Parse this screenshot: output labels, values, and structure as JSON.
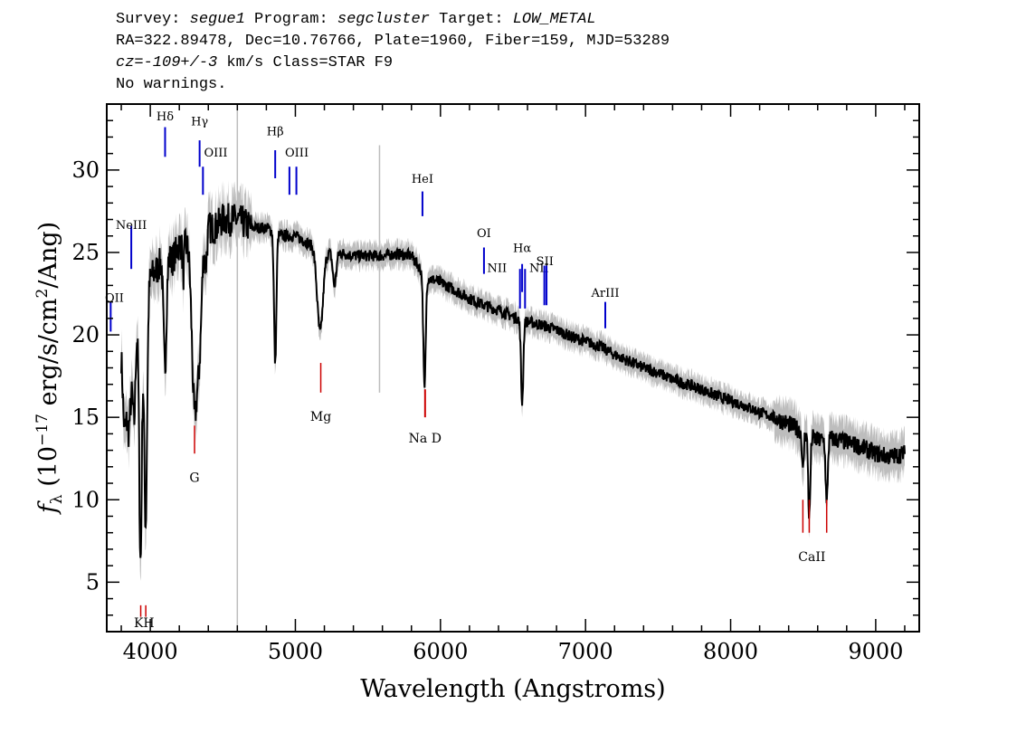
{
  "header": {
    "survey_label": "Survey: ",
    "survey": "segue1",
    "program_label": " Program: ",
    "program": "segcluster",
    "target_label": " Target: ",
    "target": "LOW_METAL",
    "line2": "RA=322.89478, Dec=10.76766, Plate=1960, Fiber=159, MJD=53289",
    "cz_label": "cz=",
    "cz_value": "-109+/-3",
    "cz_rest": " km/s Class=STAR F9",
    "line4": "No warnings."
  },
  "chart_data": {
    "type": "line",
    "title": "",
    "xlabel": "Wavelength (Angstroms)",
    "ylabel": "f_λ (10^-17 erg/s/cm²/Ang)",
    "ylabel_parts": {
      "f": "f",
      "lambda": "λ",
      "pre": " (10",
      "exp": "−17",
      "mid": " erg/s/cm",
      "exp2": "2",
      "post": "/Ang)"
    },
    "xlim": [
      3700,
      9300
    ],
    "ylim": [
      2,
      34
    ],
    "xticks": [
      4000,
      5000,
      6000,
      7000,
      8000,
      9000
    ],
    "yticks": [
      5,
      10,
      15,
      20,
      25,
      30
    ],
    "colors": {
      "spectrum": "#000000",
      "error_band": "#bdbdbd",
      "emission": "#0000cc",
      "absorption": "#cc0000"
    },
    "series": [
      {
        "continuum": [
          [
            3800,
            19
          ],
          [
            3850,
            14
          ],
          [
            3900,
            20
          ],
          [
            3950,
            22
          ],
          [
            4000,
            23.5
          ],
          [
            4050,
            24
          ],
          [
            4100,
            25
          ],
          [
            4150,
            24.5
          ],
          [
            4200,
            25.5
          ],
          [
            4250,
            25.5
          ],
          [
            4300,
            25.5
          ],
          [
            4350,
            26
          ],
          [
            4400,
            26.5
          ],
          [
            4450,
            26.5
          ],
          [
            4500,
            27
          ],
          [
            4550,
            27
          ],
          [
            4600,
            27
          ],
          [
            4700,
            26.5
          ],
          [
            4800,
            26.5
          ],
          [
            4900,
            26
          ],
          [
            5000,
            26
          ],
          [
            5100,
            25.5
          ],
          [
            5200,
            25
          ],
          [
            5300,
            25
          ],
          [
            5400,
            24.8
          ],
          [
            5500,
            24.8
          ],
          [
            5600,
            24.8
          ],
          [
            5700,
            24.9
          ],
          [
            5800,
            24.8
          ],
          [
            5900,
            23.5
          ],
          [
            6000,
            23.2
          ],
          [
            6100,
            22.7
          ],
          [
            6200,
            22.2
          ],
          [
            6300,
            21.8
          ],
          [
            6400,
            21.5
          ],
          [
            6500,
            21.1
          ],
          [
            6600,
            20.8
          ],
          [
            6700,
            20.6
          ],
          [
            6800,
            20.3
          ],
          [
            6900,
            19.9
          ],
          [
            7000,
            19.6
          ],
          [
            7100,
            19.3
          ],
          [
            7200,
            18.8
          ],
          [
            7300,
            18.4
          ],
          [
            7400,
            18
          ],
          [
            7500,
            17.7
          ],
          [
            7600,
            17.3
          ],
          [
            7700,
            17
          ],
          [
            7800,
            16.7
          ],
          [
            7900,
            16.3
          ],
          [
            8000,
            16
          ],
          [
            8100,
            15.7
          ],
          [
            8200,
            15.3
          ],
          [
            8300,
            15
          ],
          [
            8400,
            14.6
          ],
          [
            8500,
            14.1
          ],
          [
            8600,
            13.6
          ],
          [
            8700,
            13.7
          ],
          [
            8800,
            13.5
          ],
          [
            8900,
            13.2
          ],
          [
            9000,
            12.8
          ],
          [
            9100,
            12.6
          ],
          [
            9200,
            12.8
          ]
        ],
        "absorption_features": [
          [
            3820,
            2.5,
            10
          ],
          [
            3890,
            4,
            8
          ],
          [
            3933,
            15,
            9
          ],
          [
            3968,
            14,
            10
          ],
          [
            4101,
            7,
            10
          ],
          [
            4227,
            2,
            5
          ],
          [
            4305,
            10,
            18
          ],
          [
            4340,
            6,
            15
          ],
          [
            4383,
            2,
            8
          ],
          [
            4861,
            8,
            8
          ],
          [
            5170,
            5,
            20
          ],
          [
            5270,
            2,
            12
          ],
          [
            5890,
            7,
            8
          ],
          [
            6563,
            5,
            8
          ],
          [
            8498,
            2.5,
            6
          ],
          [
            8542,
            5,
            7
          ],
          [
            8662,
            4,
            7
          ]
        ]
      }
    ],
    "emission_lines": [
      {
        "label": "OII",
        "x": 3727
      },
      {
        "label": "NeIII",
        "x": 3869
      },
      {
        "label": "Hδ",
        "x": 4102
      },
      {
        "label": "Hγ",
        "x": 4340
      },
      {
        "label": "OIII",
        "x": 4363
      },
      {
        "label": "Hβ",
        "x": 4861
      },
      {
        "label": "OIII",
        "x": 4959
      },
      {
        "label": "OIII",
        "x": 5007
      },
      {
        "label": "HeI",
        "x": 5876
      },
      {
        "label": "OI",
        "x": 6300
      },
      {
        "label": "NII",
        "x": 6548
      },
      {
        "label": "Hα",
        "x": 6563
      },
      {
        "label": "NII",
        "x": 6583
      },
      {
        "label": "SII",
        "x": 6716
      },
      {
        "label": "SII",
        "x": 6731
      },
      {
        "label": "ArIII",
        "x": 7136
      }
    ],
    "absorption_lines": [
      {
        "label": "K",
        "x": 3934
      },
      {
        "label": "H",
        "x": 3969
      },
      {
        "label": "G",
        "x": 4305
      },
      {
        "label": "Mg",
        "x": 5175
      },
      {
        "label": "Na D",
        "x": 5894
      },
      {
        "label": "CaII",
        "x": 8498
      },
      {
        "label": "CaII",
        "x": 8542
      },
      {
        "label": "CaII",
        "x": 8662
      }
    ],
    "ghost_lines": [
      4600,
      5580
    ]
  }
}
